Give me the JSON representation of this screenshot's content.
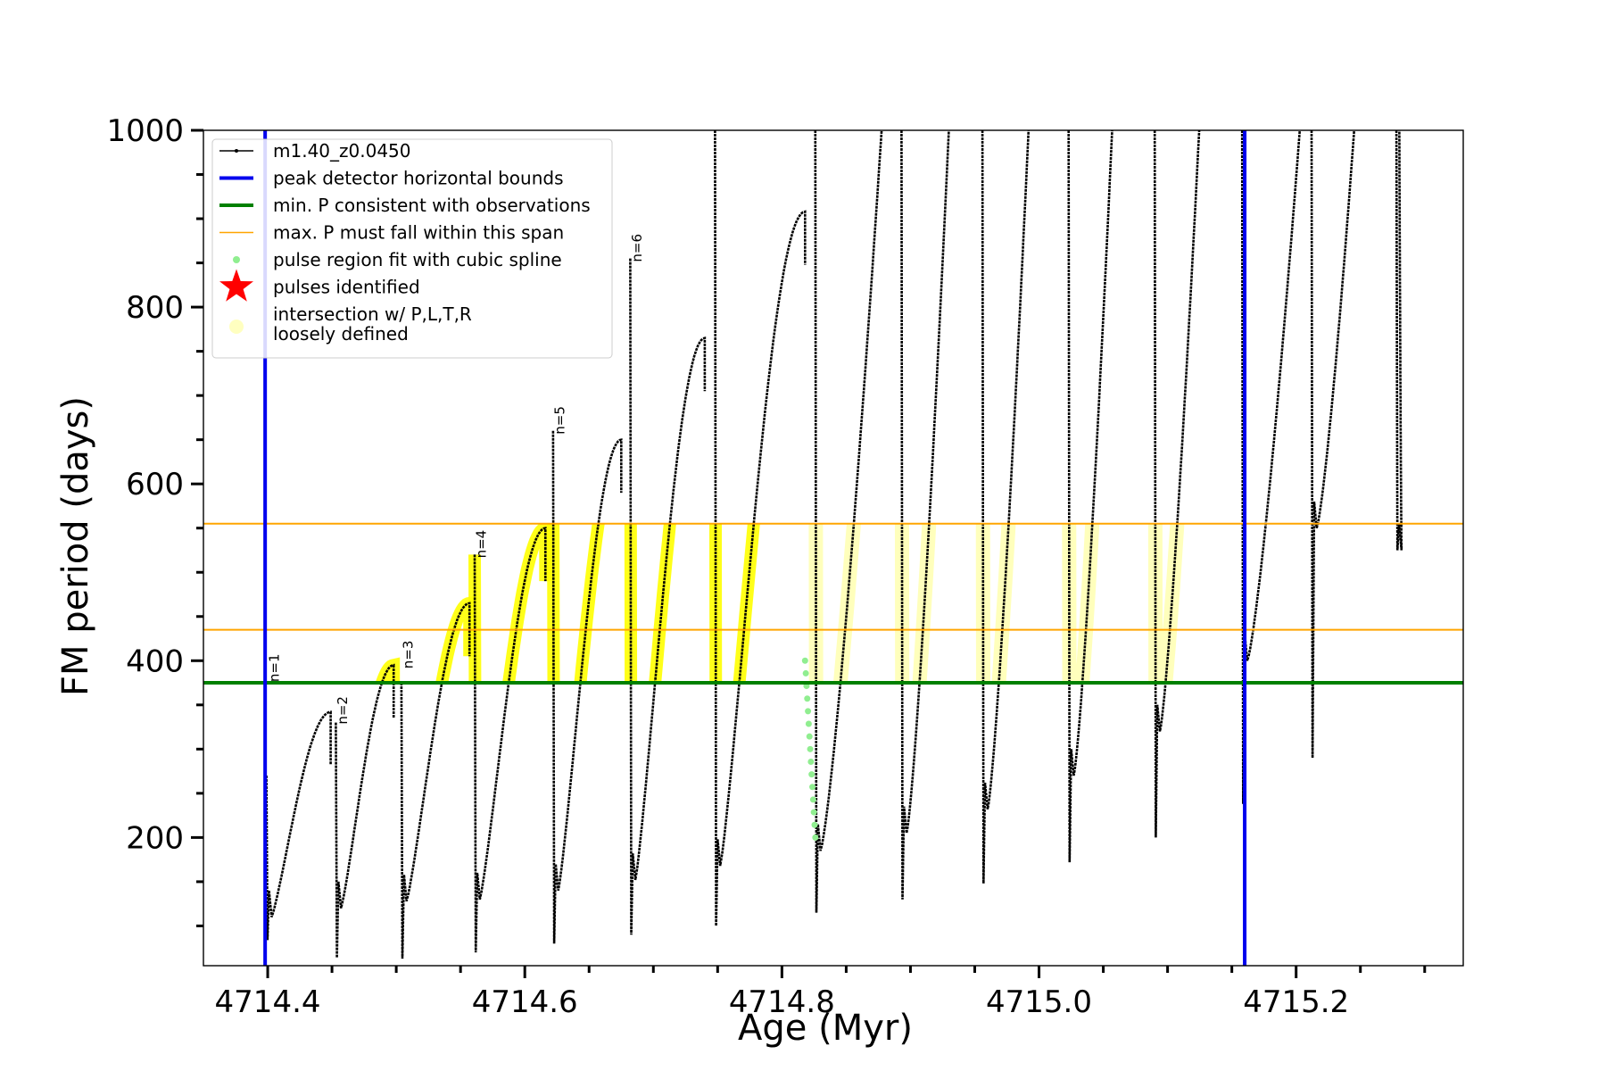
{
  "chart_data": {
    "type": "line",
    "title": "",
    "xlabel": "Age (Myr)",
    "ylabel": "FM period (days)",
    "xlim": [
      4714.35,
      4715.33
    ],
    "ylim": [
      55,
      1000
    ],
    "x_ticks": [
      "4714.4",
      "4714.6",
      "4714.8",
      "4715.0",
      "4715.2"
    ],
    "x_tick_values": [
      4714.4,
      4714.6,
      4714.8,
      4715.0,
      4715.2
    ],
    "y_ticks": [
      "200",
      "400",
      "600",
      "800",
      "1000"
    ],
    "y_tick_values": [
      200,
      400,
      600,
      800,
      1000
    ],
    "legend_position": "top-left",
    "legend": [
      {
        "label": "m1.40_z0.0450",
        "kind": "line-marker",
        "color": "#000000"
      },
      {
        "label": "peak detector horizontal bounds",
        "kind": "line",
        "color": "#0000ee"
      },
      {
        "label": "min. P consistent with observations",
        "kind": "line",
        "color": "#008000"
      },
      {
        "label": "max. P must fall within this span",
        "kind": "thin-line",
        "color": "#ffa500"
      },
      {
        "label": "pulse region fit with cubic spline",
        "kind": "dot",
        "color": "#90ee90"
      },
      {
        "label": "pulses identified",
        "kind": "star",
        "color": "#ff0000"
      },
      {
        "label": "intersection w/ P,L,T,R",
        "label2": "loosely defined",
        "kind": "circle",
        "color": "#ffffc0"
      }
    ],
    "vertical_bounds": [
      4714.398,
      4715.16
    ],
    "min_period": 375,
    "max_period_span": [
      435,
      555
    ],
    "series": [
      {
        "name": "m1.40_z0.0450",
        "color": "#000000",
        "cycles": [
          {
            "t_start": 4714.399,
            "t_end": 4714.449,
            "min": 110,
            "max": 342,
            "top": 270,
            "base": 84
          },
          {
            "t_start": 4714.453,
            "t_end": 4714.498,
            "min": 120,
            "max": 395,
            "top": 330,
            "base": 64
          },
          {
            "t_start": 4714.504,
            "t_end": 4714.557,
            "min": 128,
            "max": 465,
            "top": 375,
            "base": 63
          },
          {
            "t_start": 4714.561,
            "t_end": 4714.616,
            "min": 130,
            "max": 550,
            "top": 520,
            "base": 70
          },
          {
            "t_start": 4714.622,
            "t_end": 4714.675,
            "min": 140,
            "max": 650,
            "top": 660,
            "base": 80
          },
          {
            "t_start": 4714.682,
            "t_end": 4714.74,
            "min": 152,
            "max": 765,
            "top": 855,
            "base": 90
          },
          {
            "t_start": 4714.748,
            "t_end": 4714.818,
            "min": 168,
            "max": 908,
            "top": 1000,
            "base": 100
          },
          {
            "t_start": 4714.826,
            "t_end": 4714.882,
            "min": 185,
            "max": 1000,
            "top": 1000,
            "base": 115
          },
          {
            "t_start": 4714.893,
            "t_end": 4714.933,
            "min": 205,
            "max": 1000,
            "top": 1000,
            "base": 130
          },
          {
            "t_start": 4714.956,
            "t_end": 4714.995,
            "min": 232,
            "max": 1000,
            "top": 1000,
            "base": 148
          },
          {
            "t_start": 4715.023,
            "t_end": 4715.06,
            "min": 270,
            "max": 1000,
            "top": 1000,
            "base": 172
          },
          {
            "t_start": 4715.09,
            "t_end": 4715.128,
            "min": 320,
            "max": 1000,
            "top": 1000,
            "base": 200
          },
          {
            "t_start": 4715.158,
            "t_end": 4715.208,
            "min": 400,
            "max": 1000,
            "top": 1000,
            "base": 238
          },
          {
            "t_start": 4715.212,
            "t_end": 4715.25,
            "min": 550,
            "max": 1000,
            "top": 1000,
            "base": 290
          },
          {
            "t_start": 4715.278,
            "t_end": 4715.28,
            "min": 525,
            "max": 1000,
            "top": 1000,
            "base": 525
          }
        ]
      }
    ],
    "spline_region": {
      "t": [
        4714.818,
        4714.826
      ],
      "y": [
        200,
        400
      ]
    },
    "pulse_labels": [
      {
        "label": "n=1",
        "x": 4714.399,
        "y": 380
      },
      {
        "label": "n=2",
        "x": 4714.452,
        "y": 332
      },
      {
        "label": "n=3",
        "x": 4714.503,
        "y": 395
      },
      {
        "label": "n=4",
        "x": 4714.56,
        "y": 520
      },
      {
        "label": "n=5",
        "x": 4714.621,
        "y": 660
      },
      {
        "label": "n=6",
        "x": 4714.681,
        "y": 855
      }
    ],
    "highlight_color": "#ffff00",
    "faint_highlight_color": "#ffffa0"
  }
}
